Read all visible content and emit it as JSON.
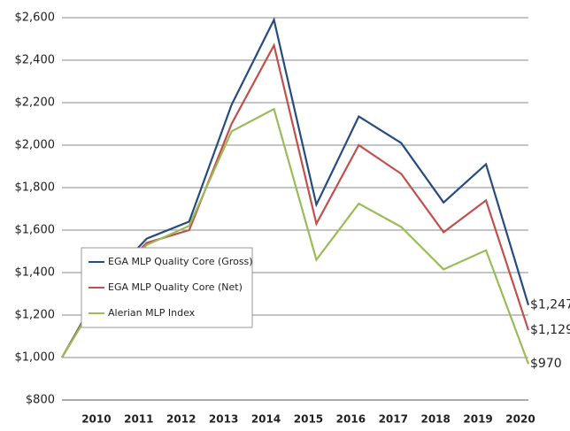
{
  "chart_data": {
    "type": "line",
    "categories": [
      null,
      "2010",
      "2011",
      "2012",
      "2013",
      "2014",
      "2015",
      "2016",
      "2017",
      "2018",
      "2019",
      "2020"
    ],
    "series": [
      {
        "name": "EGA MLP Quality Core (Gross)",
        "color": "#264b80",
        "values": [
          1000,
          1350,
          1560,
          1640,
          2190,
          2590,
          1720,
          2135,
          2010,
          1730,
          1910,
          1247
        ],
        "value_labels": [
          null,
          null,
          null,
          null,
          null,
          null,
          null,
          null,
          null,
          null,
          null,
          "$1,247"
        ]
      },
      {
        "name": "EGA MLP Quality Core (Net)",
        "color": "#c0504d",
        "values": [
          1000,
          1340,
          1540,
          1600,
          2100,
          2470,
          1630,
          2000,
          1865,
          1590,
          1740,
          1129
        ],
        "value_labels": [
          null,
          null,
          null,
          null,
          null,
          null,
          null,
          null,
          null,
          null,
          null,
          "$1,129"
        ]
      },
      {
        "name": "Alerian MLP Index",
        "color": "#9bbb59",
        "values": [
          1000,
          1330,
          1530,
          1620,
          2065,
          2170,
          1460,
          1725,
          1615,
          1415,
          1505,
          970
        ],
        "value_labels": [
          null,
          null,
          null,
          null,
          null,
          null,
          null,
          null,
          null,
          null,
          null,
          "$970"
        ]
      }
    ],
    "ylim": [
      800,
      2600
    ],
    "yticks": [
      {
        "value": 800,
        "label": "$800"
      },
      {
        "value": 1000,
        "label": "$1,000"
      },
      {
        "value": 1200,
        "label": "$1,200"
      },
      {
        "value": 1400,
        "label": "$1,400"
      },
      {
        "value": 1600,
        "label": "$1,600"
      },
      {
        "value": 1800,
        "label": "$1,800"
      },
      {
        "value": 2000,
        "label": "$2,000"
      },
      {
        "value": 2200,
        "label": "$2,200"
      },
      {
        "value": 2400,
        "label": "$2,400"
      },
      {
        "value": 2600,
        "label": "$2,600"
      }
    ],
    "grid": true
  }
}
